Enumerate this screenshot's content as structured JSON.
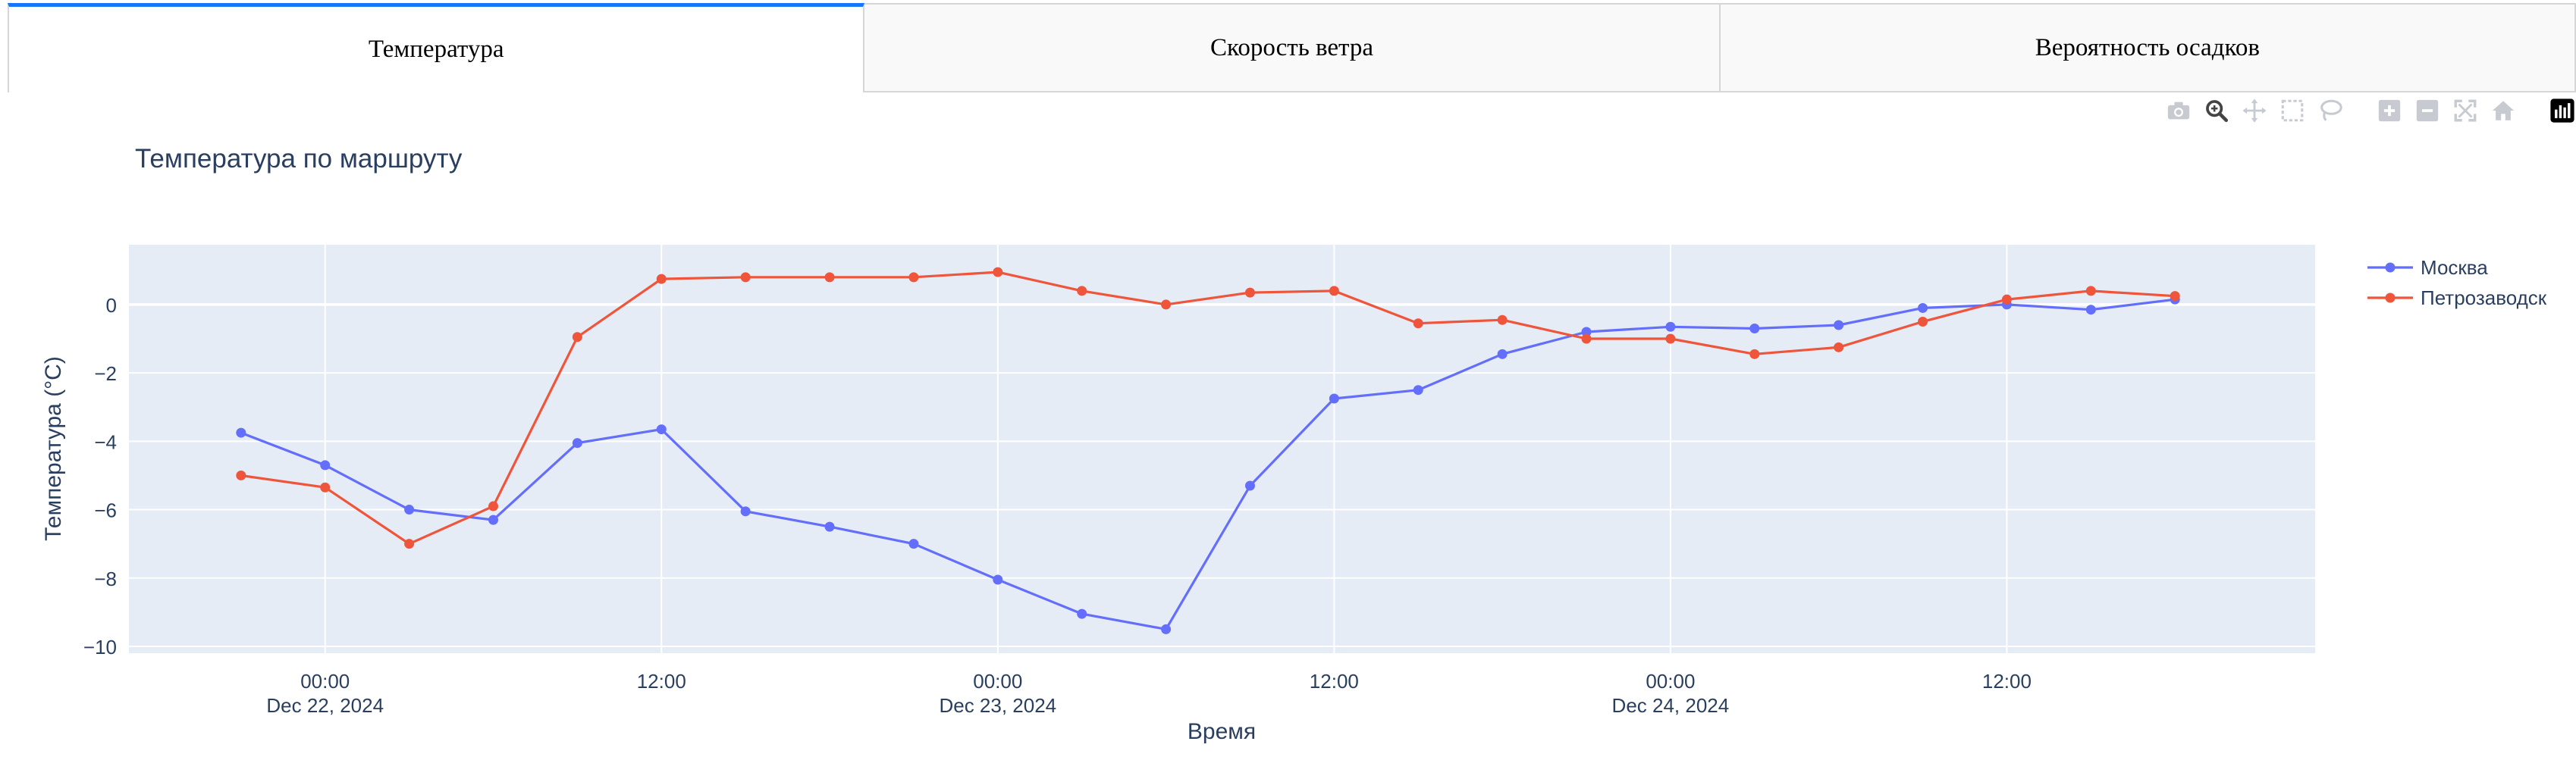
{
  "tabs": [
    {
      "label": "Температура",
      "active": true
    },
    {
      "label": "Скорость ветра",
      "active": false
    },
    {
      "label": "Вероятность осадков",
      "active": false
    }
  ],
  "modebar": {
    "icons": [
      "camera-icon",
      "zoom-icon",
      "pan-icon",
      "box-select-icon",
      "lasso-icon",
      "zoom-in-icon",
      "zoom-out-icon",
      "autoscale-icon",
      "reset-axes-icon",
      "plotly-logo-icon"
    ]
  },
  "colors": {
    "plot_bg": "#e5ecf6",
    "grid": "#ffffff",
    "text": "#2a3f5f",
    "moscow": "#636efa",
    "petrozavodsk": "#ef553b",
    "tab_accent": "#1975fa"
  },
  "chart_data": {
    "type": "line",
    "title": "Температура по маршруту",
    "xlabel": "Время",
    "ylabel": "Температура (°C)",
    "x": [
      "2024-12-21 21:00",
      "2024-12-22 00:00",
      "2024-12-22 03:00",
      "2024-12-22 06:00",
      "2024-12-22 09:00",
      "2024-12-22 12:00",
      "2024-12-22 15:00",
      "2024-12-22 18:00",
      "2024-12-22 21:00",
      "2024-12-23 00:00",
      "2024-12-23 03:00",
      "2024-12-23 06:00",
      "2024-12-23 09:00",
      "2024-12-23 12:00",
      "2024-12-23 15:00",
      "2024-12-23 18:00",
      "2024-12-23 21:00",
      "2024-12-24 00:00",
      "2024-12-24 03:00",
      "2024-12-24 06:00",
      "2024-12-24 09:00",
      "2024-12-24 12:00",
      "2024-12-24 15:00",
      "2024-12-24 18:00"
    ],
    "series": [
      {
        "name": "Москва",
        "color": "#636efa",
        "values": [
          -3.75,
          -4.7,
          -6.0,
          -6.3,
          -4.05,
          -3.65,
          -6.05,
          -6.5,
          -7.0,
          -8.05,
          -9.05,
          -9.5,
          -5.3,
          -2.75,
          -2.5,
          -1.45,
          -0.8,
          -0.65,
          -0.7,
          -0.6,
          -0.1,
          0.0,
          -0.15,
          0.15
        ]
      },
      {
        "name": "Петрозаводск",
        "color": "#ef553b",
        "values": [
          -5.0,
          -5.35,
          -7.0,
          -5.9,
          -0.95,
          0.75,
          0.8,
          0.8,
          0.8,
          0.95,
          0.4,
          0.0,
          0.35,
          0.4,
          -0.55,
          -0.45,
          -1.0,
          -1.0,
          -1.45,
          -1.25,
          -0.5,
          0.15,
          0.4,
          0.25
        ]
      }
    ],
    "yticks": [
      0,
      -2,
      -4,
      -6,
      -8,
      -10
    ],
    "ytick_labels": [
      "0",
      "−2",
      "−4",
      "−6",
      "−8",
      "−10"
    ],
    "ylim": [
      -10.2,
      1.75
    ],
    "xlim": [
      "2024-12-21 17:00",
      "2024-12-24 23:00"
    ],
    "xticks": [
      {
        "at": "2024-12-22 00:00",
        "time": "00:00",
        "date": "Dec 22, 2024"
      },
      {
        "at": "2024-12-22 12:00",
        "time": "12:00",
        "date": ""
      },
      {
        "at": "2024-12-23 00:00",
        "time": "00:00",
        "date": "Dec 23, 2024"
      },
      {
        "at": "2024-12-23 12:00",
        "time": "12:00",
        "date": ""
      },
      {
        "at": "2024-12-24 00:00",
        "time": "00:00",
        "date": "Dec 24, 2024"
      },
      {
        "at": "2024-12-24 12:00",
        "time": "12:00",
        "date": ""
      }
    ],
    "legend_position": "top-right",
    "grid": true
  }
}
